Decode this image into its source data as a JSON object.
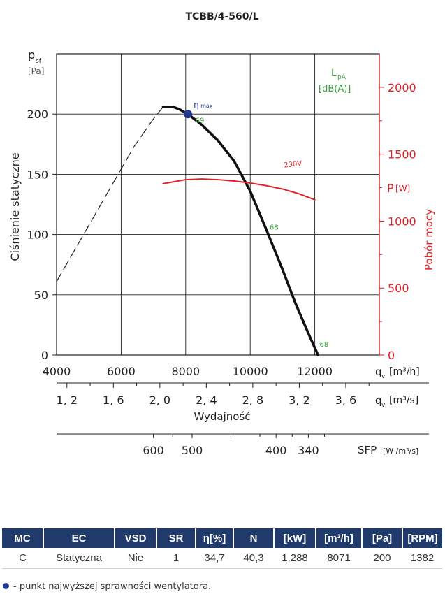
{
  "chart_data": {
    "type": "line",
    "title": "TCBB/4-560/L",
    "ylabel": "Ciśnienie statyczne",
    "ylabel_symbol": "p",
    "ylabel_symbol_sub": "sf",
    "ylabel_unit": "[Pa]",
    "xlabel": "Wydajność",
    "ylim": [
      0,
      250
    ],
    "xlim_m3h": [
      4000,
      14000
    ],
    "y_ticks": [
      "0",
      "50",
      "100",
      "150",
      "200"
    ],
    "y_tick_values": [
      0,
      50,
      100,
      150,
      200
    ],
    "x_ticks_m3h": [
      "4000",
      "6000",
      "8000",
      "10000",
      "12000"
    ],
    "x_tick_values_m3h": [
      4000,
      6000,
      8000,
      10000,
      12000
    ],
    "x_unit_m3h_symbol": "q",
    "x_unit_m3h_sub": "v",
    "x_unit_m3h": "[m³/h]",
    "x_ticks_m3s": [
      "1, 2",
      "1, 6",
      "2, 0",
      "2, 4",
      "2, 8",
      "3, 2",
      "3, 6"
    ],
    "x_tick_values_m3s": [
      1.2,
      1.6,
      2.0,
      2.4,
      2.8,
      3.2,
      3.6
    ],
    "x_unit_m3s_symbol": "q",
    "x_unit_m3s_sub": "v",
    "x_unit_m3s": "[m³/s]",
    "sfp_label": "SFP",
    "sfp_unit": "[W /m³/s]",
    "sfp_ticks": [
      "600",
      "500",
      "400",
      "340"
    ],
    "sfp_tick_positions_m3h": [
      7000,
      8200,
      10800,
      11800
    ],
    "power_axis_label": "Pobór mocy",
    "power_axis_symbol": "P",
    "power_axis_unit": "[W]",
    "power_ticks": [
      "0",
      "500",
      "1000",
      "1500",
      "2000"
    ],
    "power_tick_values": [
      0,
      500,
      1000,
      1500,
      2000
    ],
    "power_ylim": [
      0,
      2250
    ],
    "lpa_label": "L",
    "lpa_sub": "pA",
    "lpa_unit": "[dB(A)]",
    "eta_label": "η",
    "eta_sub": "max",
    "grid": true,
    "series": [
      {
        "role": "pressure-unstable",
        "style": "dashed",
        "x": [
          4000,
          4600,
          5200,
          5800,
          6400,
          7000,
          7300
        ],
        "y": [
          61,
          89,
          117,
          145,
          173,
          196,
          206
        ]
      },
      {
        "role": "pressure",
        "style": "solid",
        "x": [
          7300,
          7600,
          7800,
          8071,
          8500,
          9000,
          9500,
          10000,
          10500,
          11000,
          11400,
          11800,
          12100
        ],
        "y": [
          206,
          206,
          204,
          200,
          191,
          178,
          161,
          136,
          104,
          71,
          43,
          18,
          0
        ]
      },
      {
        "name": "230V",
        "role": "power",
        "color": "#e31e24",
        "x": [
          7300,
          8000,
          8500,
          9000,
          9500,
          10000,
          10500,
          11000,
          11500,
          12000
        ],
        "y": [
          1280,
          1310,
          1315,
          1310,
          1300,
          1285,
          1265,
          1240,
          1205,
          1160
        ]
      }
    ],
    "eta_max_point": {
      "x": 8071,
      "y": 200
    },
    "sound_labels": [
      {
        "text": "69",
        "x": 8300,
        "y": 193
      },
      {
        "text": "68",
        "x": 10600,
        "y": 104
      },
      {
        "text": "68",
        "x": 12150,
        "y": 7
      }
    ],
    "power_curve_label": "230V"
  },
  "table": {
    "headers": [
      "MC",
      "EC",
      "VSD",
      "SR",
      "η[%]",
      "N",
      "[kW]",
      "[m³/h]",
      "[Pa]",
      "[RPM]"
    ],
    "row": [
      "C",
      "Statyczna",
      "Nie",
      "1",
      "34,7",
      "40,3",
      "1,288",
      "8071",
      "200",
      "1382"
    ]
  },
  "footnote": "- punkt najwyższej sprawności wentylatora.",
  "colors": {
    "header_bg": "#1f3a6b",
    "accent_blue": "#1f3a8f",
    "power_red": "#e31e24",
    "sound_green": "#3aa23a"
  }
}
